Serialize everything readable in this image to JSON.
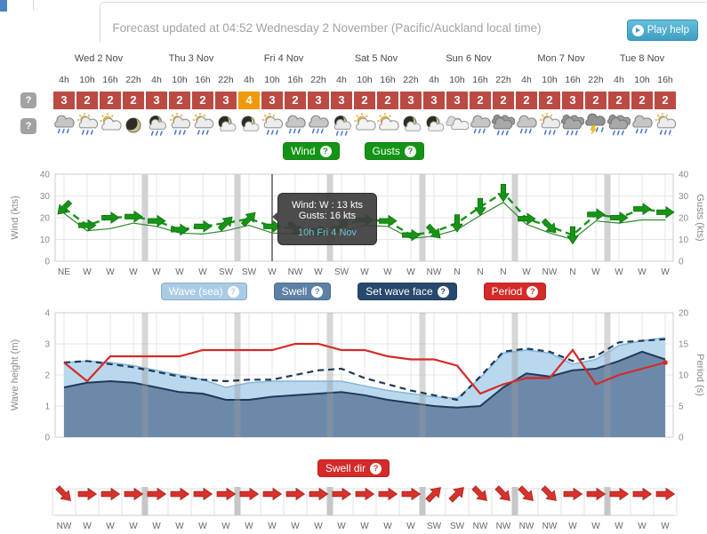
{
  "header": {
    "updated_text": "Forecast updated at 04:52 Wednesday 2 November (Pacific/Auckland local time)",
    "play_help_label": "Play help"
  },
  "help_symbol": "?",
  "day_groups": [
    {
      "label": "Wed 2 Nov",
      "cols": 4
    },
    {
      "label": "Thu 3 Nov",
      "cols": 4
    },
    {
      "label": "Fri 4 Nov",
      "cols": 4
    },
    {
      "label": "Sat 5 Nov",
      "cols": 4
    },
    {
      "label": "Sun 6 Nov",
      "cols": 4
    },
    {
      "label": "Mon 7 Nov",
      "cols": 4
    },
    {
      "label": "Tue 8 Nov",
      "cols": 3
    }
  ],
  "time_labels": [
    "4h",
    "10h",
    "16h",
    "22h",
    "4h",
    "10h",
    "16h",
    "22h",
    "4h",
    "10h",
    "16h",
    "22h",
    "4h",
    "10h",
    "16h",
    "22h",
    "4h",
    "10h",
    "16h",
    "22h",
    "4h",
    "10h",
    "16h",
    "22h",
    "4h",
    "10h",
    "16h"
  ],
  "ratings": {
    "values": [
      3,
      2,
      2,
      2,
      3,
      2,
      2,
      3,
      4,
      3,
      2,
      3,
      3,
      2,
      2,
      3,
      3,
      3,
      2,
      2,
      2,
      2,
      3,
      2,
      2,
      2,
      2
    ],
    "highlight_index": 8,
    "base_color": "#bb4a42",
    "highlight_color": "#f09a0b"
  },
  "weather_icons": [
    "rain",
    "sun-rain",
    "sun-cloud",
    "moon",
    "moon-rain",
    "sun-rain",
    "sun-rain",
    "moon-cloud",
    "moon-cloud",
    "sun-rain",
    "rain",
    "rain",
    "moon-rain",
    "sun-cloud",
    "sun-cloud",
    "moon-cloud",
    "moon-cloud",
    "cloud",
    "rain",
    "heavy-rain",
    "rain",
    "sun-rain",
    "heavy-rain",
    "thunder",
    "heavy-rain",
    "rain",
    "sun-rain"
  ],
  "wind_section": {
    "buttons": [
      {
        "label": "Wind"
      },
      {
        "label": "Gusts"
      }
    ],
    "button_color": "#149414",
    "chart_data": {
      "type": "line",
      "ylabel_left": "Wind (kts)",
      "ylabel_right": "Gusts (kts)",
      "ylim": [
        0,
        40
      ],
      "yticks": [
        0,
        10,
        20,
        30,
        40
      ],
      "x_direction_labels": [
        "NE",
        "W",
        "W",
        "W",
        "W",
        "W",
        "W",
        "SW",
        "SW",
        "W",
        "NW",
        "W",
        "SW",
        "W",
        "W",
        "W",
        "NW",
        "N",
        "N",
        "N",
        "W",
        "NW",
        "N",
        "W",
        "W",
        "W",
        "W"
      ],
      "series": [
        {
          "name": "Wind",
          "style": "solid",
          "color": "#2d8a2d",
          "values": [
            22,
            14,
            15,
            17.5,
            16,
            13,
            12.5,
            14,
            16.5,
            13,
            12.5,
            12,
            13.5,
            16.5,
            16,
            10.5,
            11.5,
            14.5,
            21,
            27,
            17,
            13,
            10,
            18.5,
            17.5,
            19,
            19
          ]
        },
        {
          "name": "Gusts",
          "style": "dashed",
          "color": "#169416",
          "values": [
            24.5,
            16.5,
            20,
            20.5,
            18.5,
            14.5,
            16,
            17.5,
            19.5,
            16,
            15,
            14,
            16.5,
            19,
            18.5,
            12,
            13.5,
            17.5,
            25,
            31.5,
            19.5,
            16,
            12,
            21.5,
            20,
            24,
            22.5
          ]
        }
      ],
      "hover_index": 9
    },
    "tooltip": {
      "line1": "Wind: W : 13 kts",
      "line2": "Gusts: 16 kts",
      "line3": "10h Fri 4 Nov"
    }
  },
  "wave_section": {
    "buttons": [
      {
        "label": "Wave (sea)",
        "color": "#a9cbe6"
      },
      {
        "label": "Swell",
        "color": "#5d80a7"
      },
      {
        "label": "Set wave face",
        "color": "#27496d"
      },
      {
        "label": "Period",
        "color": "#d42a28"
      }
    ],
    "chart_data": {
      "type": "area+line",
      "ylabel_left": "Wave height (m)",
      "ylabel_right": "Period (s)",
      "ylim_left": [
        0,
        4
      ],
      "yticks_left": [
        0,
        1,
        2,
        3,
        4
      ],
      "ylim_right": [
        0,
        20
      ],
      "yticks_right": [
        0,
        5,
        10,
        15,
        20
      ],
      "series": [
        {
          "name": "Wave (sea)",
          "kind": "area",
          "fill": "#b9d8ee",
          "stroke": "#84b6dc",
          "values_m": [
            2.4,
            2.45,
            2.4,
            2.3,
            2.15,
            2.0,
            1.85,
            1.6,
            1.75,
            1.8,
            1.8,
            1.8,
            1.8,
            1.65,
            1.5,
            1.4,
            1.3,
            1.25,
            1.9,
            2.7,
            2.8,
            2.7,
            2.35,
            2.5,
            2.95,
            3.1,
            3.2
          ]
        },
        {
          "name": "Swell",
          "kind": "area",
          "fill": "#6d89aa",
          "stroke": "#1f3a58",
          "values_m": [
            1.6,
            1.75,
            1.8,
            1.75,
            1.6,
            1.45,
            1.4,
            1.2,
            1.2,
            1.3,
            1.35,
            1.4,
            1.45,
            1.35,
            1.2,
            1.1,
            1.0,
            0.95,
            1.0,
            1.6,
            2.05,
            1.95,
            2.15,
            2.2,
            2.45,
            2.75,
            2.5
          ]
        },
        {
          "name": "Set wave face",
          "kind": "dashed-line",
          "stroke": "#1f3a58",
          "values_m": [
            2.4,
            2.45,
            2.35,
            2.25,
            2.1,
            1.95,
            1.85,
            1.8,
            1.85,
            1.85,
            2.0,
            2.15,
            2.2,
            1.9,
            1.7,
            1.5,
            1.35,
            1.2,
            1.95,
            2.75,
            2.85,
            2.75,
            2.45,
            2.6,
            3.05,
            3.1,
            3.15
          ]
        },
        {
          "name": "Period",
          "kind": "line",
          "stroke": "#d42a28",
          "values_s": [
            12,
            9,
            13,
            13,
            13,
            13,
            14,
            14,
            14,
            14,
            15,
            15,
            14,
            14,
            13,
            12.5,
            12.5,
            11.5,
            7,
            8.5,
            9.5,
            9.5,
            14,
            8.5,
            10,
            11,
            12
          ]
        }
      ]
    }
  },
  "swell_section": {
    "button_label": "Swell dir",
    "button_color": "#d42a28",
    "chart_data": {
      "type": "direction-arrows",
      "arrow_color": "#d8322c",
      "directions": [
        "NW",
        "W",
        "W",
        "W",
        "W",
        "W",
        "W",
        "W",
        "W",
        "W",
        "W",
        "W",
        "W",
        "W",
        "W",
        "W",
        "SW",
        "SW",
        "NW",
        "NW",
        "NW",
        "NW",
        "W",
        "W",
        "W",
        "W",
        "W"
      ]
    }
  }
}
